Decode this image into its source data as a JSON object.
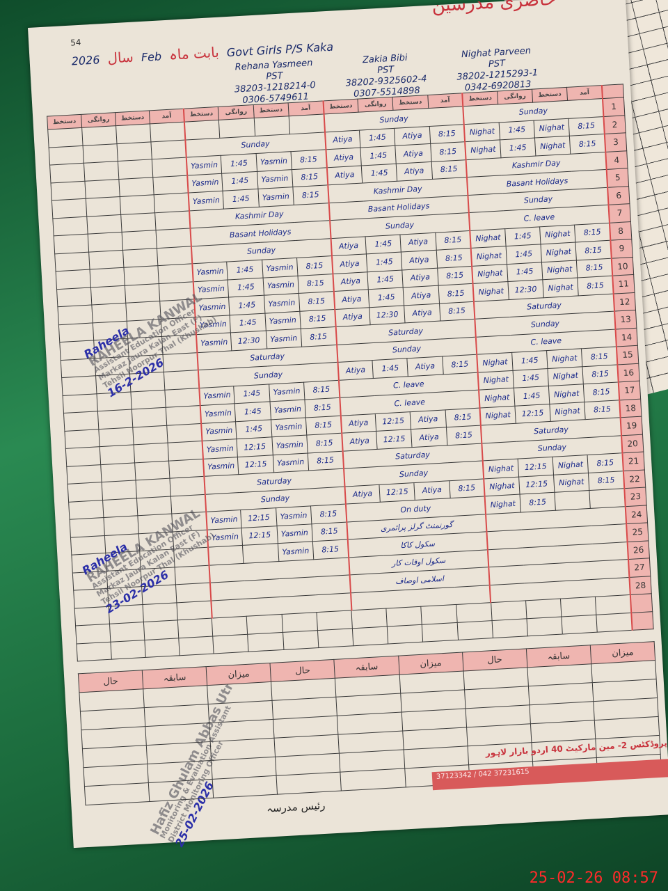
{
  "header": {
    "page_number": "54",
    "register_title": "حاضری مدرسین",
    "year": "2026",
    "year_label": "سال",
    "month": "Feb",
    "month_label": "بابت ماہ",
    "school": "Govt Girls P/S Kaka"
  },
  "teachers": [
    {
      "name": "Rehana Yasmeen",
      "designation": "PST",
      "cnic": "38203-1218214-0",
      "phone": "0306-5749611"
    },
    {
      "name": "Zakia Bibi",
      "designation": "PST",
      "cnic": "38202-9325602-4",
      "phone": "0307-5514898"
    },
    {
      "name": "Nighat Parveen",
      "designation": "PST",
      "cnic": "38202-1215293-1",
      "phone": "0342-6920813"
    }
  ],
  "columns": [
    "آمد",
    "دستخط",
    "روانگی",
    "دستخط"
  ],
  "rows": [
    {
      "day": "1",
      "t": [
        [
          "",
          "",
          "",
          ""
        ],
        [
          "Sunday"
        ],
        [
          "Sunday"
        ]
      ]
    },
    {
      "day": "2",
      "t": [
        [
          "Sunday"
        ],
        [
          "Atiya",
          "1:45",
          "Atiya",
          "8:15"
        ],
        [
          "Nighat",
          "1:45",
          "Nighat",
          "8:15"
        ]
      ]
    },
    {
      "day": "3",
      "t": [
        [
          "Yasmin",
          "1:45",
          "Yasmin",
          "8:15"
        ],
        [
          "Atiya",
          "1:45",
          "Atiya",
          "8:15"
        ],
        [
          "Nighat",
          "1:45",
          "Nighat",
          "8:15"
        ]
      ]
    },
    {
      "day": "4",
      "t": [
        [
          "Yasmin",
          "1:45",
          "Yasmin",
          "8:15"
        ],
        [
          "Atiya",
          "1:45",
          "Atiya",
          "8:15"
        ],
        [
          "Kashmir Day"
        ]
      ]
    },
    {
      "day": "5",
      "t": [
        [
          "Yasmin",
          "1:45",
          "Yasmin",
          "8:15"
        ],
        [
          "Kashmir Day"
        ],
        [
          "Basant Holidays"
        ]
      ]
    },
    {
      "day": "6",
      "t": [
        [
          "Kashmir Day"
        ],
        [
          "Basant Holidays"
        ],
        [
          "Sunday"
        ]
      ]
    },
    {
      "day": "7",
      "t": [
        [
          "Basant Holidays"
        ],
        [
          "Sunday"
        ],
        [
          "C. leave"
        ]
      ]
    },
    {
      "day": "8",
      "t": [
        [
          "Sunday"
        ],
        [
          "Atiya",
          "1:45",
          "Atiya",
          "8:15"
        ],
        [
          "Nighat",
          "1:45",
          "Nighat",
          "8:15"
        ]
      ]
    },
    {
      "day": "9",
      "t": [
        [
          "Yasmin",
          "1:45",
          "Yasmin",
          "8:15"
        ],
        [
          "Atiya",
          "1:45",
          "Atiya",
          "8:15"
        ],
        [
          "Nighat",
          "1:45",
          "Nighat",
          "8:15"
        ]
      ]
    },
    {
      "day": "10",
      "t": [
        [
          "Yasmin",
          "1:45",
          "Yasmin",
          "8:15"
        ],
        [
          "Atiya",
          "1:45",
          "Atiya",
          "8:15"
        ],
        [
          "Nighat",
          "1:45",
          "Nighat",
          "8:15"
        ]
      ]
    },
    {
      "day": "11",
      "t": [
        [
          "Yasmin",
          "1:45",
          "Yasmin",
          "8:15"
        ],
        [
          "Atiya",
          "1:45",
          "Atiya",
          "8:15"
        ],
        [
          "Nighat",
          "12:30",
          "Nighat",
          "8:15"
        ]
      ]
    },
    {
      "day": "12",
      "t": [
        [
          "Yasmin",
          "1:45",
          "Yasmin",
          "8:15"
        ],
        [
          "Atiya",
          "12:30",
          "Atiya",
          "8:15"
        ],
        [
          "Saturday"
        ]
      ]
    },
    {
      "day": "13",
      "t": [
        [
          "Yasmin",
          "12:30",
          "Yasmin",
          "8:15"
        ],
        [
          "Saturday"
        ],
        [
          "Sunday"
        ]
      ]
    },
    {
      "day": "14",
      "t": [
        [
          "Saturday"
        ],
        [
          "Sunday"
        ],
        [
          "C. leave"
        ]
      ]
    },
    {
      "day": "15",
      "t": [
        [
          "Sunday"
        ],
        [
          "Atiya",
          "1:45",
          "Atiya",
          "8:15"
        ],
        [
          "Nighat",
          "1:45",
          "Nighat",
          "8:15"
        ]
      ]
    },
    {
      "day": "16",
      "t": [
        [
          "Yasmin",
          "1:45",
          "Yasmin",
          "8:15"
        ],
        [
          "C. leave"
        ],
        [
          "Nighat",
          "1:45",
          "Nighat",
          "8:15"
        ]
      ]
    },
    {
      "day": "17",
      "t": [
        [
          "Yasmin",
          "1:45",
          "Yasmin",
          "8:15"
        ],
        [
          "C. leave"
        ],
        [
          "Nighat",
          "1:45",
          "Nighat",
          "8:15"
        ]
      ]
    },
    {
      "day": "18",
      "t": [
        [
          "Yasmin",
          "1:45",
          "Yasmin",
          "8:15"
        ],
        [
          "Atiya",
          "12:15",
          "Atiya",
          "8:15"
        ],
        [
          "Nighat",
          "12:15",
          "Nighat",
          "8:15"
        ]
      ]
    },
    {
      "day": "19",
      "t": [
        [
          "Yasmin",
          "12:15",
          "Yasmin",
          "8:15"
        ],
        [
          "Atiya",
          "12:15",
          "Atiya",
          "8:15"
        ],
        [
          "Saturday"
        ]
      ]
    },
    {
      "day": "20",
      "t": [
        [
          "Yasmin",
          "12:15",
          "Yasmin",
          "8:15"
        ],
        [
          "Saturday"
        ],
        [
          "Sunday"
        ]
      ]
    },
    {
      "day": "21",
      "t": [
        [
          "Saturday"
        ],
        [
          "Sunday"
        ],
        [
          "Nighat",
          "12:15",
          "Nighat",
          "8:15"
        ]
      ]
    },
    {
      "day": "22",
      "t": [
        [
          "Sunday"
        ],
        [
          "Atiya",
          "12:15",
          "Atiya",
          "8:15"
        ],
        [
          "Nighat",
          "12:15",
          "Nighat",
          "8:15"
        ]
      ]
    },
    {
      "day": "23",
      "t": [
        [
          "Yasmin",
          "12:15",
          "Yasmin",
          "8:15"
        ],
        [
          "On duty"
        ],
        [
          "Nighat",
          "8:15"
        ]
      ]
    },
    {
      "day": "24",
      "t": [
        [
          "Yasmin",
          "12:15",
          "Yasmin",
          "8:15"
        ],
        [
          "گورنمنٹ گرلز پرائمری"
        ],
        [
          ""
        ]
      ]
    },
    {
      "day": "25",
      "t": [
        [
          "",
          "",
          "Yasmin",
          "8:15"
        ],
        [
          "سکول کاکا"
        ],
        [
          ""
        ]
      ]
    },
    {
      "day": "26",
      "t": [
        [
          ""
        ],
        [
          "سکول اوقات کار"
        ],
        [
          ""
        ]
      ]
    },
    {
      "day": "27",
      "t": [
        [
          ""
        ],
        [
          "اسلامی اوصاف"
        ],
        [
          ""
        ]
      ]
    },
    {
      "day": "28",
      "t": [
        [
          ""
        ],
        [
          ""
        ],
        [
          ""
        ]
      ]
    }
  ],
  "summary_labels": [
    "میزان",
    "سابقہ",
    "حال",
    "میزان",
    "سابقہ",
    "حال",
    "میزان",
    "سابقہ",
    "حال"
  ],
  "stamps": [
    {
      "signature": "Raheela",
      "name": "RAHEELA KANWAL",
      "line1": "Assistant Education Officer",
      "line2": "Markaz Jaura Kalan East (F)",
      "line3": "Tehsil Noorpur Thal (Khushab)",
      "date": "16-2-2026"
    },
    {
      "signature": "Raheela",
      "name": "RAHEELA KANWAL",
      "line1": "Assistant Education Officer",
      "line2": "Markaz Jaura Kalan East (F)",
      "line3": "Tehsil Noorpur Thal (Khushab)",
      "date": "23-02-2026"
    },
    {
      "name": "Hafiz Ghulam Abbas Utra",
      "line1": "Monitoring & Evaluation Assistant",
      "line2": "District Monitoring Officer",
      "date": "25-02-2026"
    }
  ],
  "footer": {
    "head_sign_label": "رئیس مدرسہ",
    "printer": "پروڈکٹس 2- مین مارکیٹ 40 اردو بازار لاہور",
    "printer_phone1": "37123342",
    "printer_phone2": "042 37231615"
  },
  "timestamp": "25-02-26 08:57",
  "colors": {
    "ink": "#1b2a8a",
    "red_ink": "#c8323c",
    "header_pink": "#efb5b0",
    "cover_green": "#1f6b3f"
  }
}
